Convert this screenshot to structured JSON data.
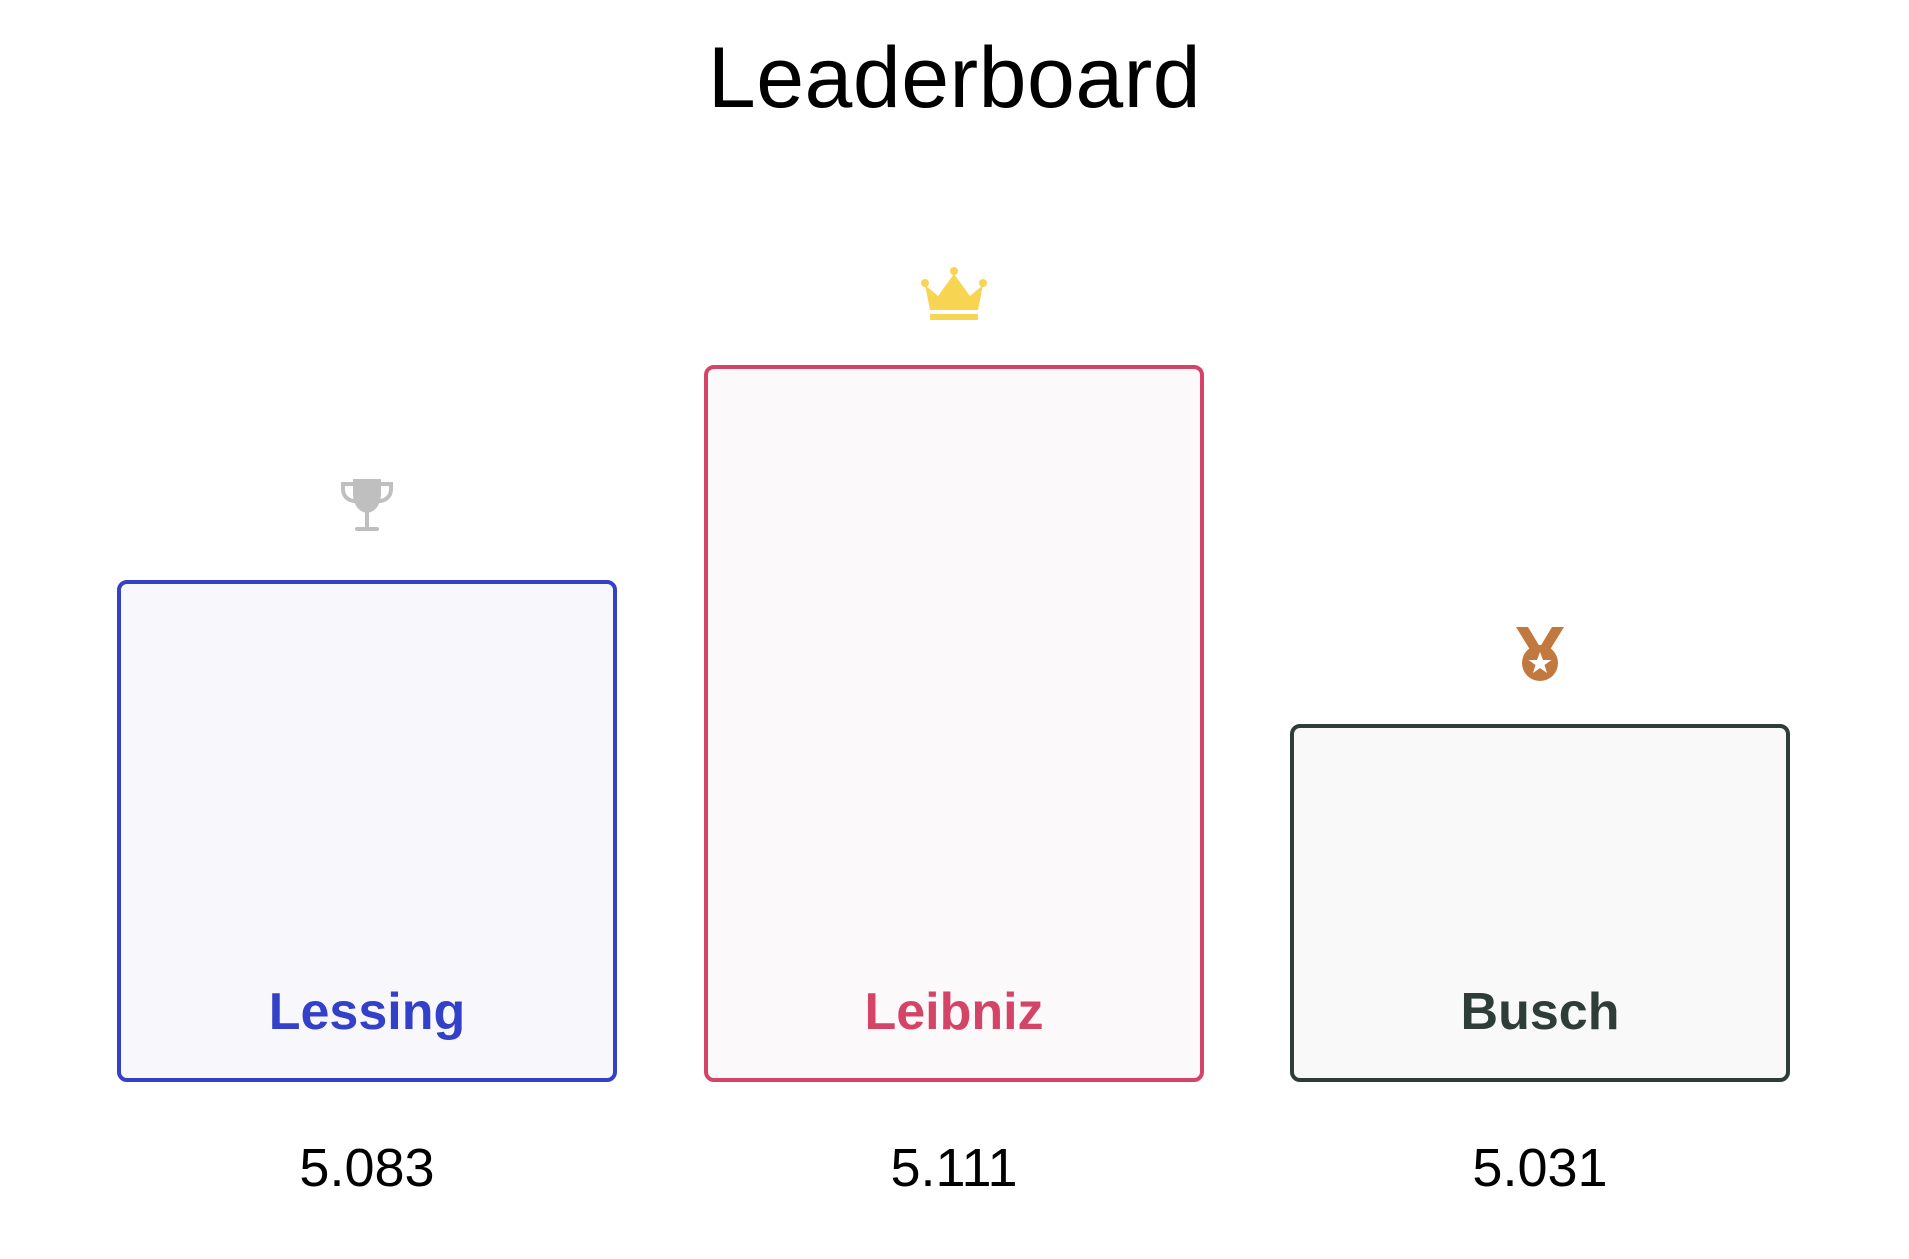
{
  "title": "Leaderboard",
  "chart_data": {
    "type": "bar",
    "title": "Leaderboard",
    "categories": [
      "Lessing",
      "Leibniz",
      "Busch"
    ],
    "values": [
      5.083,
      5.111,
      5.031
    ],
    "ranks": [
      2,
      1,
      3
    ]
  },
  "entries": [
    {
      "name": "Lessing",
      "score": "5.083",
      "rank": 2,
      "icon": "trophy-icon",
      "border_color": "#3340c8",
      "fill_color": "#f8f8fc",
      "name_color": "#3340c8",
      "icon_color": "#bfbfbf"
    },
    {
      "name": "Leibniz",
      "score": "5.111",
      "rank": 1,
      "icon": "crown-icon",
      "border_color": "#d44466",
      "fill_color": "#fcf9fa",
      "name_color": "#d44466",
      "icon_color": "#f7d552"
    },
    {
      "name": "Busch",
      "score": "5.031",
      "rank": 3,
      "icon": "medal-icon",
      "border_color": "#2f3d38",
      "fill_color": "#f8f9f8",
      "name_color": "#2f3d38",
      "icon_color": "#c2793f"
    }
  ]
}
